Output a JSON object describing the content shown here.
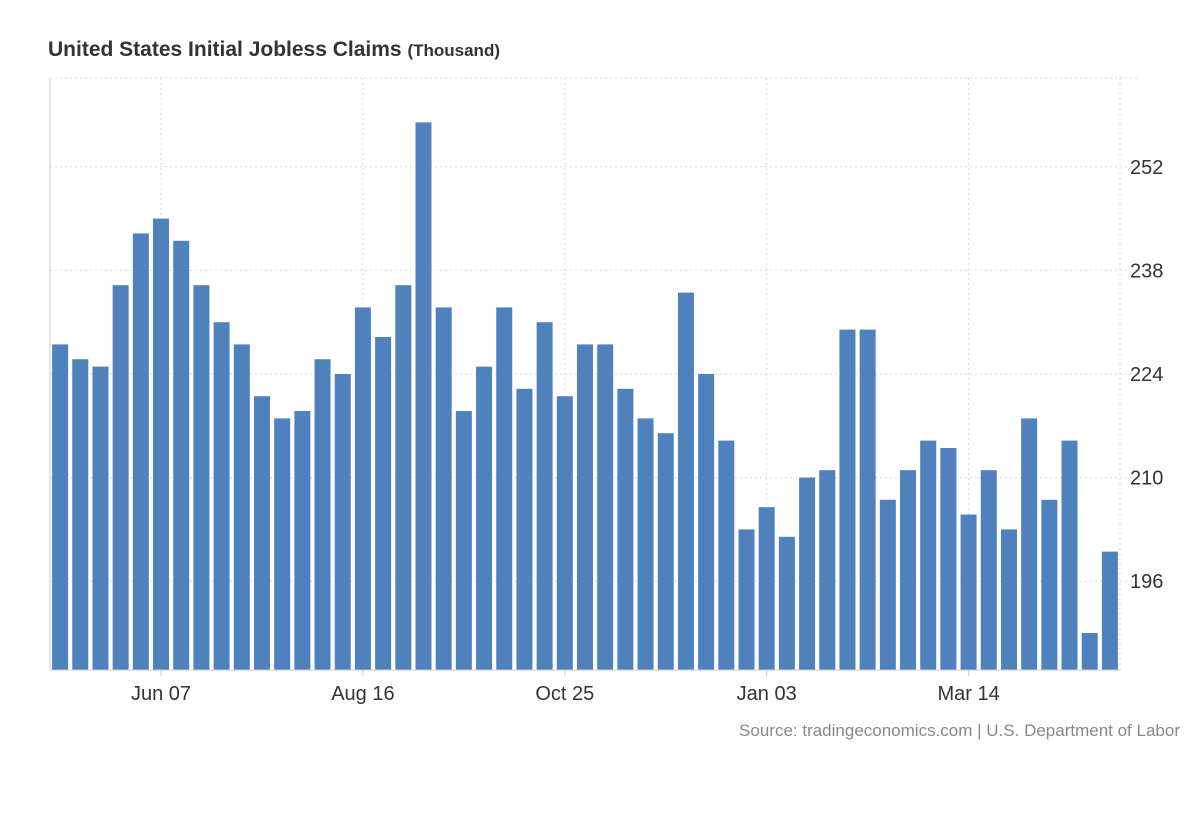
{
  "chart_data": {
    "type": "bar",
    "title": "United States Initial Jobless Claims",
    "unit": "(Thousand)",
    "source": "Source: tradingeconomics.com | U.S. Department of Labor",
    "ylim": [
      184,
      264
    ],
    "yticks": [
      196,
      210,
      224,
      238,
      252
    ],
    "xtick_labels": [
      {
        "label": "Jun 07",
        "index": 5
      },
      {
        "label": "Aug 16",
        "index": 15
      },
      {
        "label": "Oct 25",
        "index": 25
      },
      {
        "label": "Jan 03",
        "index": 35
      },
      {
        "label": "Mar 14",
        "index": 45
      }
    ],
    "grid": true,
    "bar_color": "#4f81bd",
    "series": [
      {
        "values": [
          228,
          226,
          225,
          236,
          243,
          245,
          242,
          236,
          231,
          228,
          221,
          218,
          219,
          226,
          224,
          233,
          229,
          236,
          258,
          233,
          219,
          225,
          233,
          222,
          231,
          221,
          228,
          228,
          222,
          218,
          216,
          235,
          224,
          215,
          203,
          206,
          202,
          210,
          211,
          230,
          230,
          207,
          211,
          215,
          214,
          205,
          211,
          203,
          218,
          207,
          215,
          189,
          200
        ]
      }
    ]
  }
}
